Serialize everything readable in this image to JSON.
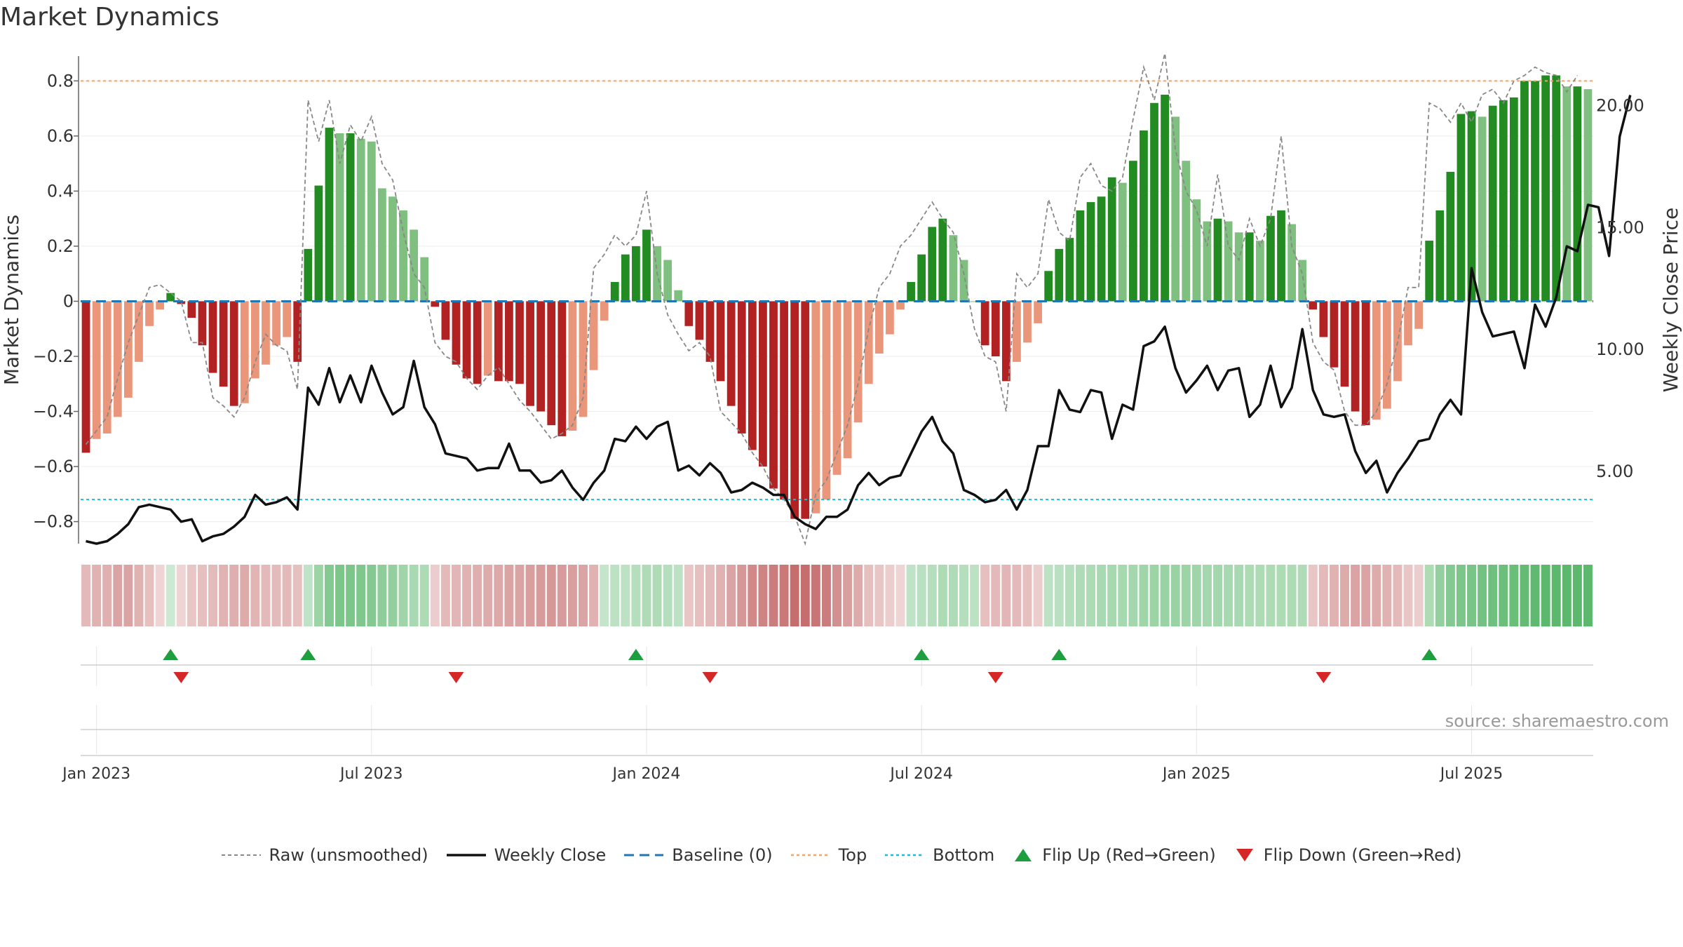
{
  "title": "Market Dynamics",
  "source": "source: sharemaestro.com",
  "colors": {
    "strong_green": "#228b22",
    "light_green": "#7fbf7f",
    "strong_red": "#b22222",
    "light_red": "#e9967a",
    "weekly_close": "#111111",
    "raw": "#888888",
    "baseline": "#1f77b4",
    "top": "#f4a460",
    "bottom": "#17becf",
    "flip_up": "#1e9e3e",
    "flip_down": "#d62728"
  },
  "chart_data": {
    "type": "bar+line",
    "title": "Market Dynamics",
    "ylabel_left": "Market Dynamics",
    "ylabel_right": "Weekly Close Price",
    "ylim_left": [
      -0.88,
      0.89
    ],
    "ylim_right": [
      2.0,
      22.0
    ],
    "left_ticks": [
      0.8,
      0.6,
      0.4,
      0.2,
      0,
      -0.2,
      -0.4,
      -0.6,
      -0.8
    ],
    "left_tick_labels": [
      "0.8",
      "0.6",
      "0.4",
      "0.2",
      "0",
      "−0.2",
      "−0.4",
      "−0.6",
      "−0.8"
    ],
    "right_ticks": [
      20.0,
      15.0,
      10.0,
      5.0
    ],
    "right_tick_labels": [
      "20.00",
      "15.00",
      "10.00",
      "5.00"
    ],
    "x_tick_labels": [
      "Jan 2023",
      "Jul 2023",
      "Jan 2024",
      "Jul 2024",
      "Jan 2025",
      "Jul 2025"
    ],
    "x_tick_weeks": [
      1,
      27,
      53,
      79,
      105,
      131
    ],
    "top_line": 0.8,
    "bottom_line": -0.72,
    "baseline": 0,
    "bars": [
      -0.55,
      -0.5,
      -0.48,
      -0.42,
      -0.35,
      -0.22,
      -0.09,
      -0.03,
      0.03,
      -0.01,
      -0.06,
      -0.16,
      -0.26,
      -0.31,
      -0.38,
      -0.37,
      -0.28,
      -0.23,
      -0.16,
      -0.13,
      -0.22,
      0.19,
      0.42,
      0.63,
      0.61,
      0.61,
      0.59,
      0.58,
      0.41,
      0.38,
      0.33,
      0.26,
      0.16,
      -0.02,
      -0.14,
      -0.23,
      -0.28,
      -0.3,
      -0.27,
      -0.29,
      -0.29,
      -0.3,
      -0.38,
      -0.4,
      -0.45,
      -0.49,
      -0.47,
      -0.42,
      -0.25,
      -0.07,
      0.07,
      0.17,
      0.2,
      0.26,
      0.2,
      0.15,
      0.04,
      -0.09,
      -0.14,
      -0.22,
      -0.29,
      -0.38,
      -0.48,
      -0.54,
      -0.6,
      -0.68,
      -0.72,
      -0.79,
      -0.79,
      -0.77,
      -0.72,
      -0.63,
      -0.57,
      -0.44,
      -0.3,
      -0.19,
      -0.12,
      -0.03,
      0.07,
      0.17,
      0.27,
      0.3,
      0.24,
      0.15,
      0,
      -0.16,
      -0.2,
      -0.29,
      -0.22,
      -0.15,
      -0.08,
      0.11,
      0.19,
      0.23,
      0.33,
      0.36,
      0.38,
      0.45,
      0.43,
      0.51,
      0.62,
      0.72,
      0.75,
      0.67,
      0.51,
      0.37,
      0.29,
      0.3,
      0.29,
      0.25,
      0.25,
      0.22,
      0.31,
      0.33,
      0.28,
      0.15,
      -0.03,
      -0.13,
      -0.24,
      -0.31,
      -0.4,
      -0.45,
      -0.43,
      -0.39,
      -0.29,
      -0.16,
      -0.1,
      0.22,
      0.33,
      0.47,
      0.68,
      0.69,
      0.67,
      0.71,
      0.73,
      0.74,
      0.8,
      0.8,
      0.82,
      0.82,
      0.78,
      0.78,
      0.77
    ],
    "raw": [
      -0.52,
      -0.47,
      -0.42,
      -0.28,
      -0.15,
      -0.05,
      0.05,
      0.06,
      0.03,
      0,
      -0.15,
      -0.15,
      -0.35,
      -0.38,
      -0.42,
      -0.35,
      -0.22,
      -0.12,
      -0.16,
      -0.18,
      -0.32,
      0.73,
      0.58,
      0.73,
      0.5,
      0.64,
      0.58,
      0.67,
      0.5,
      0.44,
      0.25,
      0.1,
      0.05,
      -0.15,
      -0.2,
      -0.22,
      -0.28,
      -0.32,
      -0.27,
      -0.24,
      -0.3,
      -0.36,
      -0.4,
      -0.45,
      -0.5,
      -0.48,
      -0.45,
      -0.35,
      0.12,
      0.17,
      0.24,
      0.2,
      0.24,
      0.4,
      0.1,
      -0.05,
      -0.12,
      -0.18,
      -0.15,
      -0.2,
      -0.4,
      -0.44,
      -0.48,
      -0.55,
      -0.6,
      -0.68,
      -0.72,
      -0.78,
      -0.88,
      -0.7,
      -0.65,
      -0.55,
      -0.45,
      -0.3,
      -0.1,
      0.05,
      0.1,
      0.2,
      0.24,
      0.3,
      0.36,
      0.3,
      0.25,
      0.1,
      -0.1,
      -0.2,
      -0.22,
      -0.4,
      0.1,
      0.05,
      0.1,
      0.37,
      0.25,
      0.22,
      0.45,
      0.5,
      0.42,
      0.4,
      0.45,
      0.66,
      0.85,
      0.73,
      0.9,
      0.55,
      0.4,
      0.33,
      0.2,
      0.46,
      0.2,
      0.15,
      0.3,
      0.2,
      0.3,
      0.6,
      0.2,
      0.1,
      -0.15,
      -0.22,
      -0.25,
      -0.4,
      -0.45,
      -0.45,
      -0.4,
      -0.3,
      -0.15,
      0.05,
      0.05,
      0.72,
      0.7,
      0.65,
      0.72,
      0.65,
      0.75,
      0.77,
      0.72,
      0.8,
      0.82,
      0.85,
      0.83,
      0.82,
      0.76,
      0.82
    ],
    "weekly_close": [
      2.1,
      2.0,
      2.1,
      2.4,
      2.8,
      3.5,
      3.6,
      3.5,
      3.4,
      2.9,
      3.0,
      2.1,
      2.3,
      2.4,
      2.7,
      3.1,
      4.0,
      3.6,
      3.7,
      3.9,
      3.4,
      8.4,
      7.7,
      9.2,
      7.8,
      8.9,
      7.8,
      9.3,
      8.2,
      7.3,
      7.6,
      9.5,
      7.6,
      6.9,
      5.7,
      5.6,
      5.5,
      5.0,
      5.1,
      5.1,
      6.1,
      5.0,
      5.0,
      4.5,
      4.6,
      5.0,
      4.3,
      3.8,
      4.5,
      5.0,
      6.3,
      6.2,
      6.8,
      6.3,
      6.8,
      7.0,
      5.0,
      5.2,
      4.8,
      5.3,
      4.9,
      4.1,
      4.2,
      4.5,
      4.3,
      4.0,
      4.0,
      3.1,
      2.8,
      2.6,
      3.1,
      3.1,
      3.4,
      4.4,
      4.9,
      4.4,
      4.7,
      4.8,
      5.7,
      6.6,
      7.2,
      6.2,
      5.7,
      4.2,
      4.0,
      3.7,
      3.8,
      4.2,
      3.4,
      4.2,
      6.0,
      6.0,
      8.3,
      7.5,
      7.4,
      8.3,
      8.2,
      6.3,
      7.7,
      7.5,
      10.1,
      10.3,
      10.9,
      9.2,
      8.2,
      8.7,
      9.3,
      8.3,
      9.1,
      9.2,
      7.2,
      7.7,
      9.3,
      7.6,
      8.4,
      10.8,
      8.3,
      7.3,
      7.2,
      7.3,
      5.8,
      4.9,
      5.4,
      4.1,
      4.9,
      5.5,
      6.2,
      6.3,
      7.3,
      7.9,
      7.3,
      13.3,
      11.5,
      10.5,
      10.6,
      10.7,
      9.2,
      11.8,
      10.9,
      12.1,
      14.2,
      14.0,
      15.9,
      15.8,
      13.8,
      18.7,
      20.4
    ],
    "band": [
      -0.3,
      -0.35,
      -0.37,
      -0.45,
      -0.45,
      -0.35,
      -0.25,
      -0.1,
      0.1,
      -0.1,
      -0.2,
      -0.25,
      -0.28,
      -0.35,
      -0.38,
      -0.4,
      -0.33,
      -0.3,
      -0.28,
      -0.3,
      -0.25,
      0.18,
      0.4,
      0.55,
      0.6,
      0.6,
      0.58,
      0.55,
      0.48,
      0.45,
      0.38,
      0.32,
      0.3,
      -0.15,
      -0.3,
      -0.32,
      -0.35,
      -0.38,
      -0.4,
      -0.42,
      -0.45,
      -0.45,
      -0.5,
      -0.52,
      -0.55,
      -0.52,
      -0.5,
      -0.45,
      -0.35,
      0.15,
      0.2,
      0.2,
      0.25,
      0.28,
      0.28,
      0.25,
      0.2,
      -0.2,
      -0.25,
      -0.28,
      -0.35,
      -0.45,
      -0.55,
      -0.65,
      -0.7,
      -0.75,
      -0.78,
      -0.85,
      -0.85,
      -0.8,
      -0.75,
      -0.6,
      -0.5,
      -0.4,
      -0.25,
      -0.2,
      -0.15,
      -0.1,
      0.18,
      0.22,
      0.25,
      0.3,
      0.28,
      0.25,
      0.2,
      -0.25,
      -0.3,
      -0.32,
      -0.3,
      -0.25,
      -0.15,
      0.2,
      0.22,
      0.25,
      0.28,
      0.3,
      0.32,
      0.33,
      0.33,
      0.35,
      0.38,
      0.4,
      0.42,
      0.42,
      0.4,
      0.38,
      0.35,
      0.35,
      0.33,
      0.32,
      0.3,
      0.3,
      0.3,
      0.3,
      0.3,
      0.28,
      -0.2,
      -0.3,
      -0.35,
      -0.4,
      -0.45,
      -0.45,
      -0.4,
      -0.35,
      -0.3,
      -0.2,
      -0.15,
      0.3,
      0.45,
      0.55,
      0.6,
      0.62,
      0.65,
      0.68,
      0.7,
      0.72,
      0.75,
      0.78,
      0.8,
      0.8,
      0.8,
      0.8,
      0.8
    ],
    "flip_up_weeks": [
      8,
      21,
      52,
      79,
      92,
      127
    ],
    "flip_down_weeks": [
      9,
      35,
      59,
      86,
      117
    ]
  },
  "legend": [
    {
      "label": "Raw (unsmoothed)",
      "icon": "dashed-gray-line"
    },
    {
      "label": "Weekly Close",
      "icon": "solid-black-line"
    },
    {
      "label": "Baseline (0)",
      "icon": "dashed-blue-line"
    },
    {
      "label": "Top",
      "icon": "dotted-orange-line"
    },
    {
      "label": "Bottom",
      "icon": "dotted-cyan-line"
    },
    {
      "label": "Flip Up (Red→Green)",
      "icon": "green-up-triangle"
    },
    {
      "label": "Flip Down (Green→Red)",
      "icon": "red-down-triangle"
    }
  ]
}
